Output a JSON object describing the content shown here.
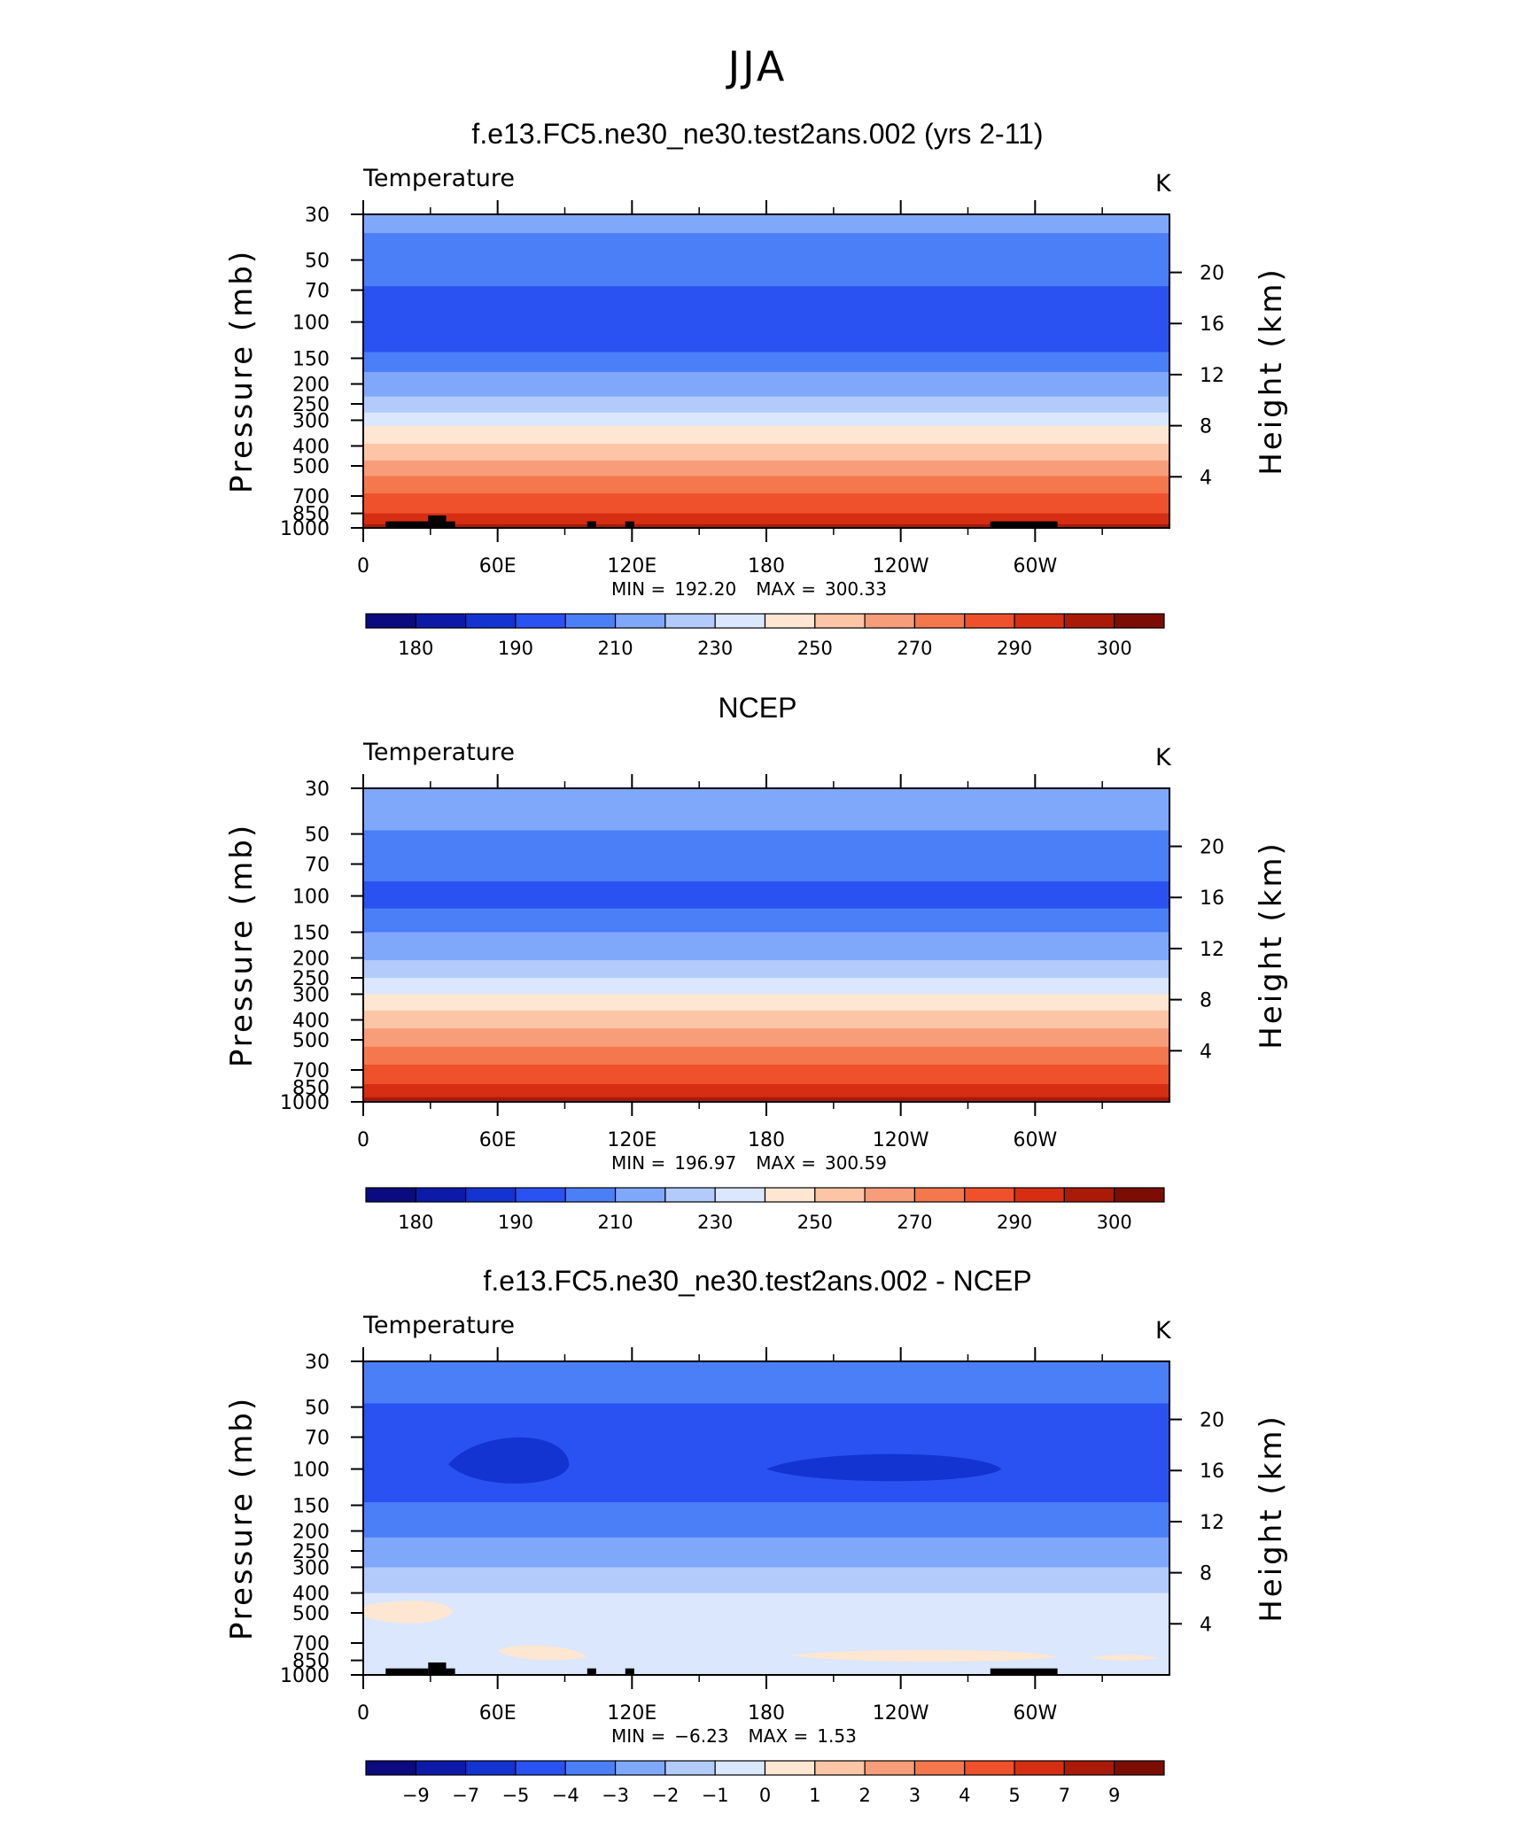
{
  "figure": {
    "title": "JJA"
  },
  "chart_data": [
    {
      "type": "heatmap",
      "title": "f.e13.FC5.ne30_ne30.test2ans.002 (yrs 2-11)",
      "variable_label": "Temperature",
      "units": "K",
      "xlabel": "",
      "ylabel": "Pressure (mb)",
      "y2label": "Height (km)",
      "x_ticks": [
        "0",
        "60E",
        "120E",
        "180",
        "120W",
        "60W"
      ],
      "y_ticks": [
        "30",
        "50",
        "70",
        "100",
        "150",
        "200",
        "250",
        "300",
        "400",
        "500",
        "700",
        "850",
        "1000"
      ],
      "y2_ticks": [
        "20",
        "16",
        "12",
        "8",
        "4"
      ],
      "stats": {
        "min_label": "MIN =",
        "min": "192.20",
        "max_label": "MAX =",
        "max": "300.33"
      },
      "colorbar_labels": [
        "180",
        "190",
        "210",
        "230",
        "250",
        "270",
        "290",
        "300"
      ],
      "colors": [
        "#0b0a7e",
        "#0d1aa8",
        "#1434d2",
        "#2a52f2",
        "#4a7ff7",
        "#80a8fa",
        "#b2cbfb",
        "#dae7fd",
        "#fde6d2",
        "#fcc6a6",
        "#f89d79",
        "#f4774e",
        "#ee512b",
        "#d62e13",
        "#aa1a09",
        "#7c0d04"
      ],
      "bands": [
        {
          "p_top": 30,
          "p_bottom": 37,
          "level": 5
        },
        {
          "p_top": 37,
          "p_bottom": 67,
          "level": 4
        },
        {
          "p_top": 67,
          "p_bottom": 140,
          "level": 3
        },
        {
          "p_top": 140,
          "p_bottom": 175,
          "level": 4
        },
        {
          "p_top": 175,
          "p_bottom": 230,
          "level": 5
        },
        {
          "p_top": 230,
          "p_bottom": 275,
          "level": 6
        },
        {
          "p_top": 275,
          "p_bottom": 320,
          "level": 7
        },
        {
          "p_top": 320,
          "p_bottom": 390,
          "level": 8
        },
        {
          "p_top": 390,
          "p_bottom": 470,
          "level": 9
        },
        {
          "p_top": 470,
          "p_bottom": 560,
          "level": 10
        },
        {
          "p_top": 560,
          "p_bottom": 680,
          "level": 11
        },
        {
          "p_top": 680,
          "p_bottom": 850,
          "level": 12
        },
        {
          "p_top": 850,
          "p_bottom": 960,
          "level": 13
        },
        {
          "p_top": 960,
          "p_bottom": 1000,
          "level": 14
        }
      ],
      "has_terrain": true
    },
    {
      "type": "heatmap",
      "title": "NCEP",
      "variable_label": "Temperature",
      "units": "K",
      "xlabel": "",
      "ylabel": "Pressure (mb)",
      "y2label": "Height (km)",
      "x_ticks": [
        "0",
        "60E",
        "120E",
        "180",
        "120W",
        "60W"
      ],
      "y_ticks": [
        "30",
        "50",
        "70",
        "100",
        "150",
        "200",
        "250",
        "300",
        "400",
        "500",
        "700",
        "850",
        "1000"
      ],
      "y2_ticks": [
        "20",
        "16",
        "12",
        "8",
        "4"
      ],
      "stats": {
        "min_label": "MIN =",
        "min": "196.97",
        "max_label": "MAX =",
        "max": "300.59"
      },
      "colorbar_labels": [
        "180",
        "190",
        "210",
        "230",
        "250",
        "270",
        "290",
        "300"
      ],
      "colors": [
        "#0b0a7e",
        "#0d1aa8",
        "#1434d2",
        "#2a52f2",
        "#4a7ff7",
        "#80a8fa",
        "#b2cbfb",
        "#dae7fd",
        "#fde6d2",
        "#fcc6a6",
        "#f89d79",
        "#f4774e",
        "#ee512b",
        "#d62e13",
        "#aa1a09",
        "#7c0d04"
      ],
      "bands": [
        {
          "p_top": 30,
          "p_bottom": 48,
          "level": 5
        },
        {
          "p_top": 48,
          "p_bottom": 85,
          "level": 4
        },
        {
          "p_top": 85,
          "p_bottom": 115,
          "level": 3
        },
        {
          "p_top": 115,
          "p_bottom": 150,
          "level": 4
        },
        {
          "p_top": 150,
          "p_bottom": 205,
          "level": 5
        },
        {
          "p_top": 205,
          "p_bottom": 250,
          "level": 6
        },
        {
          "p_top": 250,
          "p_bottom": 300,
          "level": 7
        },
        {
          "p_top": 300,
          "p_bottom": 360,
          "level": 8
        },
        {
          "p_top": 360,
          "p_bottom": 440,
          "level": 9
        },
        {
          "p_top": 440,
          "p_bottom": 540,
          "level": 10
        },
        {
          "p_top": 540,
          "p_bottom": 660,
          "level": 11
        },
        {
          "p_top": 660,
          "p_bottom": 820,
          "level": 12
        },
        {
          "p_top": 820,
          "p_bottom": 950,
          "level": 13
        },
        {
          "p_top": 950,
          "p_bottom": 1000,
          "level": 14
        }
      ],
      "has_terrain": false
    },
    {
      "type": "heatmap",
      "title": "f.e13.FC5.ne30_ne30.test2ans.002 - NCEP",
      "variable_label": "Temperature",
      "units": "K",
      "xlabel": "",
      "ylabel": "Pressure (mb)",
      "y2label": "Height (km)",
      "x_ticks": [
        "0",
        "60E",
        "120E",
        "180",
        "120W",
        "60W"
      ],
      "y_ticks": [
        "30",
        "50",
        "70",
        "100",
        "150",
        "200",
        "250",
        "300",
        "400",
        "500",
        "700",
        "850",
        "1000"
      ],
      "y2_ticks": [
        "20",
        "16",
        "12",
        "8",
        "4"
      ],
      "stats": {
        "min_label": "MIN =",
        "min": "−6.23",
        "max_label": "MAX =",
        "max": "1.53"
      },
      "colorbar_labels": [
        "−9",
        "−7",
        "−5",
        "−4",
        "−3",
        "−2",
        "−1",
        "0",
        "1",
        "2",
        "3",
        "4",
        "5",
        "7",
        "9"
      ],
      "colors": [
        "#0b0a7e",
        "#0d1aa8",
        "#1434d2",
        "#2a52f2",
        "#4a7ff7",
        "#80a8fa",
        "#b2cbfb",
        "#dae7fd",
        "#fde6d2",
        "#fcc6a6",
        "#f89d79",
        "#f4774e",
        "#ee512b",
        "#d62e13",
        "#aa1a09",
        "#7c0d04"
      ],
      "bands": [
        {
          "p_top": 30,
          "p_bottom": 48,
          "level": 4
        },
        {
          "p_top": 48,
          "p_bottom": 145,
          "level": 3
        },
        {
          "p_top": 145,
          "p_bottom": 215,
          "level": 4
        },
        {
          "p_top": 215,
          "p_bottom": 300,
          "level": 5
        },
        {
          "p_top": 300,
          "p_bottom": 400,
          "level": 6
        },
        {
          "p_top": 400,
          "p_bottom": 1000,
          "level": 7
        }
      ],
      "has_terrain": true
    }
  ]
}
